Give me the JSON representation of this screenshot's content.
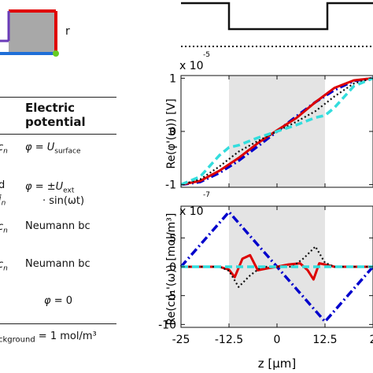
{
  "figure": {
    "schematic_label": "r",
    "table": {
      "header_line1": "Electric",
      "header_line2": "potential",
      "rows": [
        {
          "left": "c_n",
          "phi": "φ",
          "eq": "= ",
          "U": "U",
          "sub": "surface",
          "extra": ""
        },
        {
          "left_top": "d",
          "left": "j_n",
          "phi": "φ",
          "eq": "= ±",
          "U": "U",
          "sub": "ext",
          "extra": "· sin(ωt)"
        },
        {
          "left": "c_n",
          "text": "Neumann bc"
        },
        {
          "left": "c_n",
          "text": "Neumann bc"
        },
        {
          "phi": "φ",
          "eq": "= 0"
        }
      ],
      "bottom_sub": "ckground",
      "bottom_val": " = 1 mol/m³"
    }
  },
  "chart_data": [
    {
      "type": "line",
      "title": "",
      "ylabel": "Re(φ'(ω)) [V]",
      "y_exponent": "x 10",
      "y_exponent_power": "-5",
      "ylim": [
        -1.05,
        1.05
      ],
      "yticks": [
        "1",
        "0",
        "-1"
      ],
      "xlim": [
        -25,
        25
      ],
      "shaded_region": [
        -12.5,
        12.5
      ],
      "series": [
        {
          "color": "#0000cc",
          "style": "dash-dot",
          "x": [
            -25,
            -20,
            -15,
            -10,
            -5,
            0,
            5,
            10,
            15,
            20,
            25
          ],
          "y": [
            -1,
            -0.95,
            -0.78,
            -0.55,
            -0.28,
            0,
            0.28,
            0.55,
            0.78,
            0.95,
            1
          ]
        },
        {
          "color": "#dd0000",
          "style": "solid",
          "x": [
            -25,
            -20,
            -15,
            -10,
            -5,
            0,
            5,
            10,
            15,
            20,
            25
          ],
          "y": [
            -1,
            -0.93,
            -0.74,
            -0.5,
            -0.22,
            0.02,
            0.25,
            0.55,
            0.82,
            0.96,
            1
          ]
        },
        {
          "color": "#111111",
          "style": "dotted",
          "x": [
            -25,
            -20,
            -15,
            -10,
            -5,
            0,
            5,
            10,
            15,
            20,
            25
          ],
          "y": [
            -1,
            -0.9,
            -0.66,
            -0.38,
            -0.18,
            0,
            0.18,
            0.38,
            0.66,
            0.9,
            1
          ]
        },
        {
          "color": "#33dddd",
          "style": "dashed",
          "x": [
            -25,
            -20,
            -15,
            -12.5,
            -10,
            -5,
            0,
            5,
            10,
            12.5,
            15,
            20,
            25
          ],
          "y": [
            -1,
            -0.85,
            -0.45,
            -0.3,
            -0.26,
            -0.12,
            0,
            0.12,
            0.26,
            0.3,
            0.45,
            0.85,
            1
          ]
        }
      ]
    },
    {
      "type": "line",
      "title": "",
      "ylabel": "Re(cn₁'(ω)) [mol/m³]",
      "y_exponent": "x 10",
      "y_exponent_power": "-7",
      "ylim": [
        -10.5,
        10.5
      ],
      "yticks": [
        "5",
        "0",
        "-5",
        "-10"
      ],
      "xlabel": "z [μm]",
      "xticks": [
        "-25",
        "-12.5",
        "0",
        "12.5",
        "2"
      ],
      "xlim": [
        -25,
        25
      ],
      "shaded_region": [
        -12.5,
        12.5
      ],
      "series": [
        {
          "color": "#0000cc",
          "style": "dash-dot",
          "x": [
            -25,
            -12.5,
            12.5,
            25
          ],
          "y": [
            0,
            9.5,
            -9.5,
            0
          ]
        },
        {
          "color": "#dd0000",
          "style": "solid",
          "x": [
            -25,
            -15,
            -12.5,
            -11,
            -9,
            -7,
            -5,
            -2,
            0,
            3,
            6,
            8,
            9.5,
            11,
            12.5,
            15,
            25
          ],
          "y": [
            0,
            0,
            -0.5,
            -1.8,
            1.4,
            2.0,
            -0.6,
            -0.2,
            0,
            0.4,
            0.6,
            -0.6,
            -2.2,
            0.6,
            0.4,
            0,
            0
          ]
        },
        {
          "color": "#111111",
          "style": "dotted",
          "x": [
            -25,
            -15,
            -12.5,
            -10,
            -7,
            -4,
            0,
            4,
            7,
            10,
            12.5,
            15,
            25
          ],
          "y": [
            0,
            0,
            -0.7,
            -3.5,
            -1.5,
            0,
            0,
            0,
            1.5,
            3.5,
            0.7,
            0,
            0
          ]
        },
        {
          "color": "#33dddd",
          "style": "dashed",
          "x": [
            -25,
            25
          ],
          "y": [
            0,
            0
          ]
        }
      ]
    }
  ]
}
